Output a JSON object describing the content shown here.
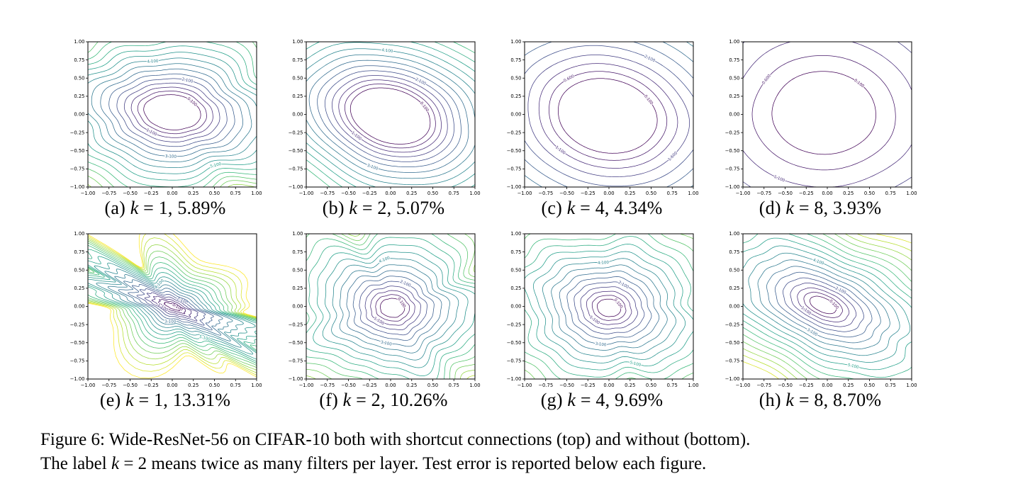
{
  "figure": {
    "caption": {
      "line1": "Figure 6: Wide-ResNet-56 on CIFAR-10 both with shortcut connections (top) and without (bottom).",
      "line2_pre": "The label ",
      "kvar": "k",
      "line2_post": " = 2 means twice as many filters per layer. Test error is reported below each figure."
    }
  },
  "axes": {
    "xlim": [
      -1,
      1
    ],
    "ylim": [
      -1,
      1
    ],
    "xticks": [
      "−1.00",
      "−0.75",
      "−0.50",
      "−0.25",
      "0.00",
      "0.25",
      "0.50",
      "0.75",
      "1.00"
    ],
    "yticks": [
      "1.00",
      "0.75",
      "0.50",
      "0.25",
      "0.00",
      "−0.25",
      "−0.50",
      "−0.75",
      "−1.00"
    ],
    "grid": false,
    "legend": "none"
  },
  "chart_data": [
    {
      "type": "contour",
      "id": "a",
      "caption": {
        "label": "(a)",
        "var": "k",
        "rest": "= 1,",
        "error": "5.89%"
      },
      "k": 1,
      "test_error_pct": 5.89,
      "xlim": [
        -1,
        1
      ],
      "ylim": [
        -1,
        1
      ],
      "levels": {
        "min": 0.1,
        "step": 0.5,
        "count": 16,
        "max": 7.6
      },
      "label_format": "0.000",
      "colormap": "viridis",
      "color_vmax": 9.1,
      "shape": {
        "center": [
          0.0,
          0.03
        ],
        "rx": 1.3,
        "ry": 0.92,
        "tilt_deg": -10,
        "r0": 0.26,
        "dr": 0.052,
        "acc": 0.0018,
        "wiggle": 0.18,
        "wiggle_base": 0.02,
        "noise_freqs": [
          4,
          7,
          11
        ],
        "seed": 1
      }
    },
    {
      "type": "contour",
      "id": "b",
      "caption": {
        "label": "(b)",
        "var": "k",
        "rest": "= 2,",
        "error": "5.07%"
      },
      "k": 2,
      "test_error_pct": 5.07,
      "xlim": [
        -1,
        1
      ],
      "ylim": [
        -1,
        1
      ],
      "levels": {
        "min": 0.1,
        "step": 0.5,
        "count": 13,
        "max": 6.1
      },
      "label_format": "0.000",
      "colormap": "viridis",
      "color_vmax": 9.1,
      "shape": {
        "center": [
          0.0,
          -0.02
        ],
        "rx": 1.3,
        "ry": 0.95,
        "tilt_deg": -25,
        "r0": 0.38,
        "dr": 0.05,
        "acc": 0.0022,
        "wiggle": 0.05,
        "wiggle_base": 0.01,
        "noise_freqs": [
          3,
          5,
          8
        ],
        "seed": 2
      }
    },
    {
      "type": "contour",
      "id": "c",
      "caption": {
        "label": "(c)",
        "var": "k",
        "rest": "= 4,",
        "error": "4.34%"
      },
      "k": 4,
      "test_error_pct": 4.34,
      "xlim": [
        -1,
        1
      ],
      "ylim": [
        -1,
        1
      ],
      "levels": {
        "min": 0.1,
        "step": 0.5,
        "count": 11,
        "max": 5.1
      },
      "label_format": "0.000",
      "colormap": "viridis",
      "color_vmax": 9.1,
      "shape": {
        "center": [
          -0.02,
          -0.02
        ],
        "rx": 1.2,
        "ry": 1.0,
        "tilt_deg": -22,
        "r0": 0.5,
        "dr": 0.09,
        "acc": 0.005,
        "wiggle": 0.045,
        "wiggle_base": 0.008,
        "noise_freqs": [
          3,
          5,
          7
        ],
        "seed": 3
      }
    },
    {
      "type": "contour",
      "id": "d",
      "caption": {
        "label": "(d)",
        "var": "k",
        "rest": "= 8,",
        "error": "3.93%"
      },
      "k": 8,
      "test_error_pct": 3.93,
      "xlim": [
        -1,
        1
      ],
      "ylim": [
        -1,
        1
      ],
      "levels": {
        "min": 0.1,
        "step": 0.5,
        "count": 6,
        "max": 2.6
      },
      "label_format": "0.000",
      "colormap": "viridis",
      "color_vmax": 9.1,
      "shape": {
        "center": [
          -0.04,
          0.02
        ],
        "rx": 1.1,
        "ry": 1.02,
        "tilt_deg": -5,
        "r0": 0.56,
        "dr": 0.2,
        "acc": 0.012,
        "wiggle": 0.04,
        "wiggle_base": 0.008,
        "noise_freqs": [
          3,
          5,
          7
        ],
        "seed": 4
      }
    },
    {
      "type": "contour",
      "id": "e",
      "caption": {
        "label": "(e)",
        "var": "k",
        "rest": "= 1,",
        "error": "13.31%"
      },
      "k": 1,
      "test_error_pct": 13.31,
      "xlim": [
        -1,
        1
      ],
      "ylim": [
        -1,
        1
      ],
      "levels": {
        "min": 0.1,
        "step": 0.5,
        "count": 19,
        "max": 9.1
      },
      "label_format": "0.000",
      "colormap": "viridis",
      "color_vmax": 9.1,
      "shape": {
        "center": [
          0.0,
          0.0
        ],
        "rx": 1.5,
        "ry": 0.42,
        "tilt_deg": -27,
        "r0": 0.07,
        "dr": 0.045,
        "acc": 0.0022,
        "wiggle": 0.5,
        "wiggle_base": 0.1,
        "noise_freqs": [
          6,
          11,
          17
        ],
        "seed": 5
      }
    },
    {
      "type": "contour",
      "id": "f",
      "caption": {
        "label": "(f)",
        "var": "k",
        "rest": "= 2,",
        "error": "10.26%"
      },
      "k": 2,
      "test_error_pct": 10.26,
      "xlim": [
        -1,
        1
      ],
      "ylim": [
        -1,
        1
      ],
      "levels": {
        "min": 0.1,
        "step": 0.5,
        "count": 18,
        "max": 8.6
      },
      "label_format": "0.000",
      "colormap": "viridis",
      "color_vmax": 9.1,
      "shape": {
        "center": [
          0.02,
          -0.02
        ],
        "rx": 1.12,
        "ry": 1.0,
        "tilt_deg": -15,
        "r0": 0.13,
        "dr": 0.048,
        "acc": 0.0023,
        "wiggle": 0.26,
        "wiggle_base": 0.03,
        "noise_freqs": [
          5,
          9,
          13
        ],
        "seed": 6
      }
    },
    {
      "type": "contour",
      "id": "g",
      "caption": {
        "label": "(g)",
        "var": "k",
        "rest": "= 4,",
        "error": "9.69%"
      },
      "k": 4,
      "test_error_pct": 9.69,
      "xlim": [
        -1,
        1
      ],
      "ylim": [
        -1,
        1
      ],
      "levels": {
        "min": 0.1,
        "step": 0.5,
        "count": 17,
        "max": 8.1
      },
      "label_format": "0.000",
      "colormap": "viridis",
      "color_vmax": 9.1,
      "shape": {
        "center": [
          0.0,
          -0.02
        ],
        "rx": 1.18,
        "ry": 1.0,
        "tilt_deg": -18,
        "r0": 0.12,
        "dr": 0.05,
        "acc": 0.0022,
        "wiggle": 0.18,
        "wiggle_base": 0.025,
        "noise_freqs": [
          4,
          8,
          13
        ],
        "seed": 7
      }
    },
    {
      "type": "contour",
      "id": "h",
      "caption": {
        "label": "(h)",
        "var": "k",
        "rest": "= 8,",
        "error": "8.70%"
      },
      "k": 8,
      "test_error_pct": 8.7,
      "xlim": [
        -1,
        1
      ],
      "ylim": [
        -1,
        1
      ],
      "levels": {
        "min": 0.1,
        "step": 0.5,
        "count": 18,
        "max": 8.6
      },
      "label_format": "0.000",
      "colormap": "viridis",
      "color_vmax": 9.1,
      "shape": {
        "center": [
          -0.05,
          0.02
        ],
        "rx": 1.45,
        "ry": 0.78,
        "tilt_deg": -30,
        "r0": 0.12,
        "dr": 0.052,
        "acc": 0.0022,
        "wiggle": 0.13,
        "wiggle_base": 0.02,
        "noise_freqs": [
          4,
          7,
          12
        ],
        "seed": 8
      }
    }
  ]
}
